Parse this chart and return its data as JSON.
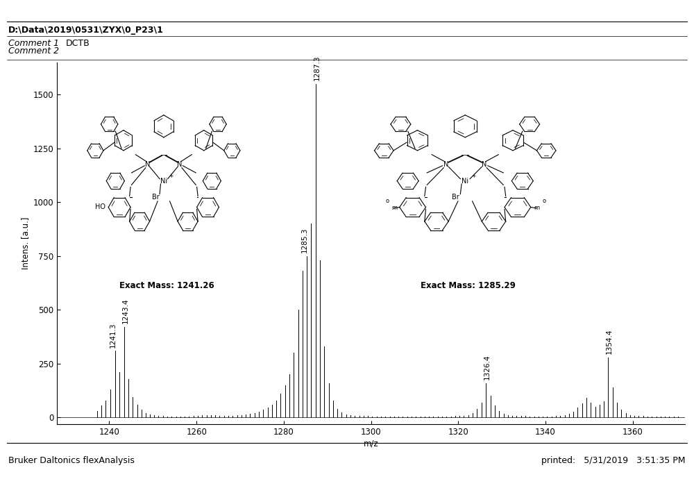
{
  "title_path": "D:\\Data\\2019\\0531\\ZYX\\0_P23\\1",
  "comment1": "DCTB",
  "comment2": "",
  "xlabel": "m/z",
  "ylabel": "Intens. [a.u.]",
  "xlim": [
    1228,
    1372
  ],
  "ylim": [
    -30,
    1650
  ],
  "xticks": [
    1240,
    1260,
    1280,
    1300,
    1320,
    1340,
    1360
  ],
  "yticks": [
    0,
    250,
    500,
    750,
    1000,
    1250,
    1500
  ],
  "footer_left": "Bruker Daltonics flexAnalysis",
  "footer_right": "printed:   5/31/2019   3:51:35 PM",
  "exact_mass_1": "Exact Mass: 1241.26",
  "exact_mass_2": "Exact Mass: 1285.29",
  "peaks": [
    {
      "mz": 1237.2,
      "intensity": 30
    },
    {
      "mz": 1238.2,
      "intensity": 55
    },
    {
      "mz": 1239.2,
      "intensity": 80
    },
    {
      "mz": 1240.2,
      "intensity": 130
    },
    {
      "mz": 1241.3,
      "intensity": 310,
      "label": "1241.3"
    },
    {
      "mz": 1242.3,
      "intensity": 210
    },
    {
      "mz": 1243.4,
      "intensity": 420,
      "label": "1243.4"
    },
    {
      "mz": 1244.4,
      "intensity": 180
    },
    {
      "mz": 1245.4,
      "intensity": 95
    },
    {
      "mz": 1246.4,
      "intensity": 60
    },
    {
      "mz": 1247.4,
      "intensity": 35
    },
    {
      "mz": 1248.3,
      "intensity": 20
    },
    {
      "mz": 1249.3,
      "intensity": 15
    },
    {
      "mz": 1250.3,
      "intensity": 10
    },
    {
      "mz": 1251.3,
      "intensity": 8
    },
    {
      "mz": 1252.3,
      "intensity": 6
    },
    {
      "mz": 1253.3,
      "intensity": 5
    },
    {
      "mz": 1254.3,
      "intensity": 5
    },
    {
      "mz": 1255.3,
      "intensity": 5
    },
    {
      "mz": 1256.3,
      "intensity": 5
    },
    {
      "mz": 1257.3,
      "intensity": 5
    },
    {
      "mz": 1258.3,
      "intensity": 5
    },
    {
      "mz": 1259.3,
      "intensity": 6
    },
    {
      "mz": 1260.3,
      "intensity": 8
    },
    {
      "mz": 1261.3,
      "intensity": 10
    },
    {
      "mz": 1262.3,
      "intensity": 12
    },
    {
      "mz": 1263.3,
      "intensity": 12
    },
    {
      "mz": 1264.3,
      "intensity": 10
    },
    {
      "mz": 1265.3,
      "intensity": 8
    },
    {
      "mz": 1266.3,
      "intensity": 7
    },
    {
      "mz": 1267.3,
      "intensity": 7
    },
    {
      "mz": 1268.3,
      "intensity": 8
    },
    {
      "mz": 1269.3,
      "intensity": 10
    },
    {
      "mz": 1270.3,
      "intensity": 12
    },
    {
      "mz": 1271.3,
      "intensity": 15
    },
    {
      "mz": 1272.3,
      "intensity": 18
    },
    {
      "mz": 1273.3,
      "intensity": 22
    },
    {
      "mz": 1274.3,
      "intensity": 28
    },
    {
      "mz": 1275.3,
      "intensity": 35
    },
    {
      "mz": 1276.3,
      "intensity": 45
    },
    {
      "mz": 1277.3,
      "intensity": 60
    },
    {
      "mz": 1278.3,
      "intensity": 80
    },
    {
      "mz": 1279.3,
      "intensity": 110
    },
    {
      "mz": 1280.3,
      "intensity": 150
    },
    {
      "mz": 1281.3,
      "intensity": 200
    },
    {
      "mz": 1282.3,
      "intensity": 300
    },
    {
      "mz": 1283.3,
      "intensity": 500
    },
    {
      "mz": 1284.3,
      "intensity": 680
    },
    {
      "mz": 1285.3,
      "intensity": 750,
      "label": "1285.3"
    },
    {
      "mz": 1286.3,
      "intensity": 900
    },
    {
      "mz": 1287.3,
      "intensity": 1550,
      "label": "1287.3"
    },
    {
      "mz": 1288.3,
      "intensity": 730
    },
    {
      "mz": 1289.3,
      "intensity": 330
    },
    {
      "mz": 1290.3,
      "intensity": 160
    },
    {
      "mz": 1291.3,
      "intensity": 80
    },
    {
      "mz": 1292.3,
      "intensity": 40
    },
    {
      "mz": 1293.3,
      "intensity": 25
    },
    {
      "mz": 1294.3,
      "intensity": 15
    },
    {
      "mz": 1295.3,
      "intensity": 10
    },
    {
      "mz": 1296.3,
      "intensity": 8
    },
    {
      "mz": 1297.3,
      "intensity": 7
    },
    {
      "mz": 1298.3,
      "intensity": 6
    },
    {
      "mz": 1299.3,
      "intensity": 6
    },
    {
      "mz": 1300.3,
      "intensity": 5
    },
    {
      "mz": 1301.3,
      "intensity": 5
    },
    {
      "mz": 1302.3,
      "intensity": 5
    },
    {
      "mz": 1303.3,
      "intensity": 5
    },
    {
      "mz": 1304.3,
      "intensity": 5
    },
    {
      "mz": 1305.3,
      "intensity": 5
    },
    {
      "mz": 1306.3,
      "intensity": 5
    },
    {
      "mz": 1307.3,
      "intensity": 5
    },
    {
      "mz": 1308.3,
      "intensity": 5
    },
    {
      "mz": 1309.3,
      "intensity": 5
    },
    {
      "mz": 1310.3,
      "intensity": 5
    },
    {
      "mz": 1311.3,
      "intensity": 5
    },
    {
      "mz": 1312.3,
      "intensity": 5
    },
    {
      "mz": 1313.3,
      "intensity": 5
    },
    {
      "mz": 1314.3,
      "intensity": 5
    },
    {
      "mz": 1315.3,
      "intensity": 5
    },
    {
      "mz": 1316.3,
      "intensity": 5
    },
    {
      "mz": 1317.3,
      "intensity": 5
    },
    {
      "mz": 1318.3,
      "intensity": 5
    },
    {
      "mz": 1319.3,
      "intensity": 6
    },
    {
      "mz": 1320.3,
      "intensity": 7
    },
    {
      "mz": 1321.3,
      "intensity": 8
    },
    {
      "mz": 1322.3,
      "intensity": 12
    },
    {
      "mz": 1323.3,
      "intensity": 20
    },
    {
      "mz": 1324.3,
      "intensity": 40
    },
    {
      "mz": 1325.3,
      "intensity": 70
    },
    {
      "mz": 1326.4,
      "intensity": 160,
      "label": "1326.4"
    },
    {
      "mz": 1327.4,
      "intensity": 100
    },
    {
      "mz": 1328.4,
      "intensity": 55
    },
    {
      "mz": 1329.4,
      "intensity": 30
    },
    {
      "mz": 1330.4,
      "intensity": 18
    },
    {
      "mz": 1331.4,
      "intensity": 12
    },
    {
      "mz": 1332.4,
      "intensity": 8
    },
    {
      "mz": 1333.4,
      "intensity": 7
    },
    {
      "mz": 1334.4,
      "intensity": 6
    },
    {
      "mz": 1335.4,
      "intensity": 6
    },
    {
      "mz": 1336.4,
      "intensity": 5
    },
    {
      "mz": 1337.4,
      "intensity": 5
    },
    {
      "mz": 1338.4,
      "intensity": 5
    },
    {
      "mz": 1339.4,
      "intensity": 5
    },
    {
      "mz": 1340.4,
      "intensity": 5
    },
    {
      "mz": 1341.4,
      "intensity": 5
    },
    {
      "mz": 1342.4,
      "intensity": 6
    },
    {
      "mz": 1343.4,
      "intensity": 8
    },
    {
      "mz": 1344.4,
      "intensity": 12
    },
    {
      "mz": 1345.4,
      "intensity": 18
    },
    {
      "mz": 1346.4,
      "intensity": 28
    },
    {
      "mz": 1347.4,
      "intensity": 45
    },
    {
      "mz": 1348.4,
      "intensity": 65
    },
    {
      "mz": 1349.4,
      "intensity": 90
    },
    {
      "mz": 1350.4,
      "intensity": 70
    },
    {
      "mz": 1351.4,
      "intensity": 50
    },
    {
      "mz": 1352.4,
      "intensity": 60
    },
    {
      "mz": 1353.4,
      "intensity": 75
    },
    {
      "mz": 1354.4,
      "intensity": 280,
      "label": "1354.4"
    },
    {
      "mz": 1355.4,
      "intensity": 140
    },
    {
      "mz": 1356.4,
      "intensity": 70
    },
    {
      "mz": 1357.4,
      "intensity": 35
    },
    {
      "mz": 1358.4,
      "intensity": 20
    },
    {
      "mz": 1359.4,
      "intensity": 12
    },
    {
      "mz": 1360.4,
      "intensity": 8
    },
    {
      "mz": 1361.4,
      "intensity": 7
    },
    {
      "mz": 1362.4,
      "intensity": 6
    },
    {
      "mz": 1363.4,
      "intensity": 5
    },
    {
      "mz": 1364.4,
      "intensity": 5
    },
    {
      "mz": 1365.4,
      "intensity": 5
    },
    {
      "mz": 1366.4,
      "intensity": 5
    },
    {
      "mz": 1367.4,
      "intensity": 5
    },
    {
      "mz": 1368.4,
      "intensity": 5
    },
    {
      "mz": 1369.4,
      "intensity": 4
    },
    {
      "mz": 1370.4,
      "intensity": 3
    }
  ],
  "bg_color": "#ffffff",
  "line_color": "#000000",
  "label_fontsize": 7.5,
  "tick_fontsize": 8.5,
  "title_fontsize": 9,
  "header_fontsize": 9
}
